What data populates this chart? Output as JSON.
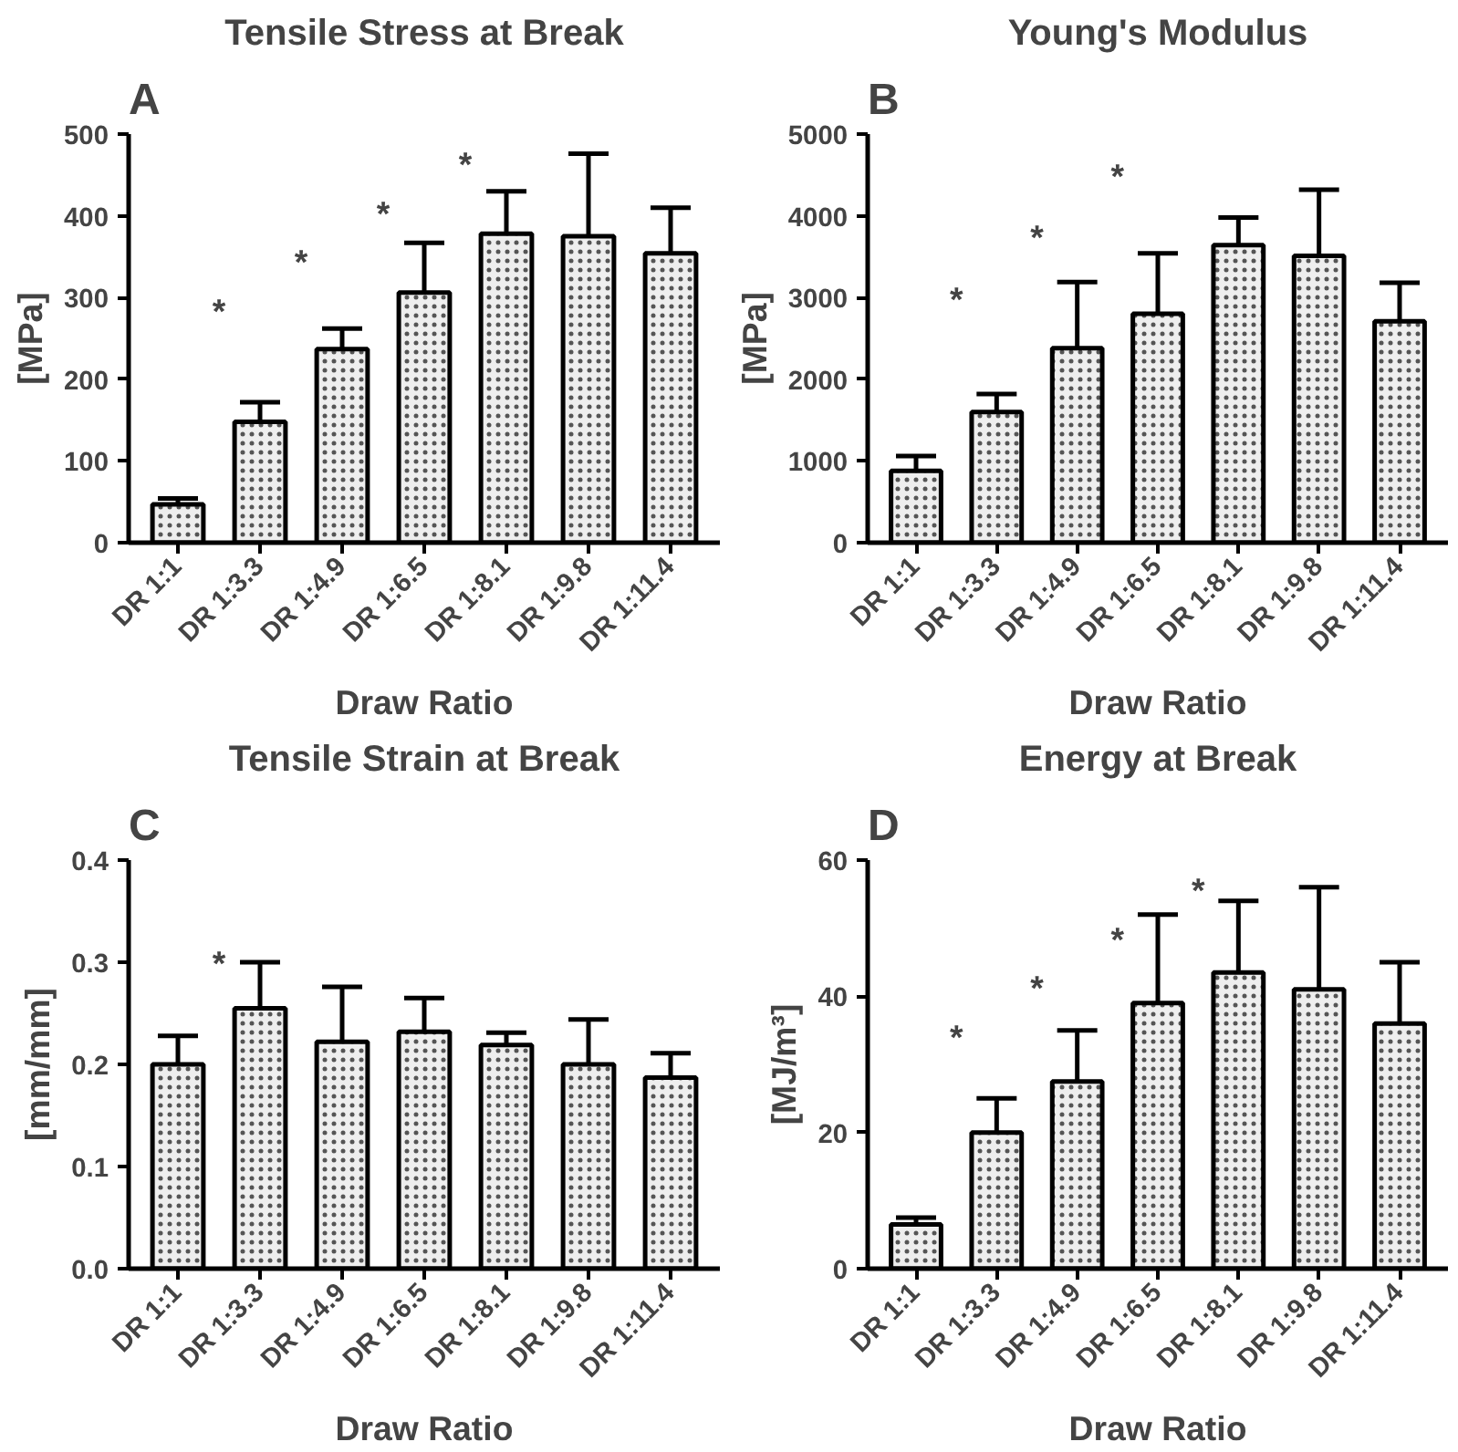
{
  "chart_data": [
    {
      "type": "bar",
      "title": "Tensile Stress at Break",
      "xlabel": "Draw Ratio",
      "ylabel": "[MPa]",
      "categories": [
        "DR 1:1",
        "DR 1:3.3",
        "DR 1:4.9",
        "DR 1:6.5",
        "DR 1:8.1",
        "DR 1:9.8",
        "DR 1:11.4"
      ],
      "values": [
        47,
        148,
        237,
        306,
        378,
        375,
        354
      ],
      "errors": [
        7,
        24,
        25,
        61,
        52,
        101,
        56
      ],
      "color": "#eeeeee",
      "ylim": [
        0,
        500
      ],
      "yticks": [
        0,
        100,
        200,
        300,
        400,
        500
      ],
      "grid": false,
      "annotations": [
        "A",
        "*",
        "*",
        "*",
        "*"
      ]
    },
    {
      "type": "bar",
      "title": "Young's Modulus",
      "xlabel": "Draw Ratio",
      "ylabel": "[MPa]",
      "categories": [
        "DR 1:1",
        "DR 1:3.3",
        "DR 1:4.9",
        "DR 1:6.5",
        "DR 1:8.1",
        "DR 1:9.8",
        "DR 1:11.4"
      ],
      "values": [
        880,
        1600,
        2380,
        2800,
        3640,
        3510,
        2710
      ],
      "errors": [
        180,
        220,
        810,
        740,
        340,
        810,
        470
      ],
      "color": "#eeeeee",
      "ylim": [
        0,
        5000
      ],
      "yticks": [
        0,
        1000,
        2000,
        3000,
        4000,
        5000
      ],
      "grid": false,
      "annotations": [
        "B",
        "*",
        "*",
        "*"
      ]
    },
    {
      "type": "bar",
      "title": "Tensile Strain at Break",
      "xlabel": "Draw Ratio",
      "ylabel": "[mm/mm]",
      "categories": [
        "DR 1:1",
        "DR 1:3.3",
        "DR 1:4.9",
        "DR 1:6.5",
        "DR 1:8.1",
        "DR 1:9.8",
        "DR 1:11.4"
      ],
      "values": [
        0.2,
        0.255,
        0.222,
        0.232,
        0.219,
        0.2,
        0.187
      ],
      "errors": [
        0.028,
        0.045,
        0.054,
        0.033,
        0.012,
        0.044,
        0.024
      ],
      "color": "#eeeeee",
      "ylim": [
        0,
        0.4
      ],
      "yticks": [
        {
          "value": 0,
          "label": "0.0"
        },
        0.1,
        0.2,
        0.3,
        0.4
      ],
      "grid": false,
      "annotations": [
        "C",
        "*"
      ]
    },
    {
      "type": "bar",
      "title": "Energy at Break",
      "xlabel": "Draw Ratio",
      "ylabel": "[MJ/m³]",
      "categories": [
        "DR 1:1",
        "DR 1:3.3",
        "DR 1:4.9",
        "DR 1:6.5",
        "DR 1:8.1",
        "DR 1:9.8",
        "DR 1:11.4"
      ],
      "values": [
        6.5,
        20,
        27.5,
        39,
        43.5,
        41,
        36
      ],
      "errors": [
        1,
        5,
        7.5,
        13,
        10.5,
        15,
        9
      ],
      "color": "#eeeeee",
      "ylim": [
        0,
        60
      ],
      "yticks": [
        0,
        20,
        40,
        60
      ],
      "grid": false,
      "annotations": [
        "D",
        "*",
        "*",
        "*",
        "*"
      ]
    }
  ]
}
